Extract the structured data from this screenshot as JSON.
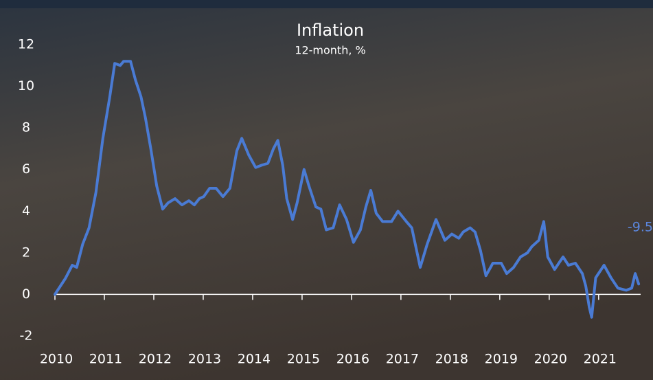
{
  "chart_data": {
    "type": "line",
    "title": "Inflation",
    "subtitle": "12-month, %",
    "annotation": "-9.5",
    "xlim": [
      2010,
      2021.85
    ],
    "ylim": [
      -2,
      12
    ],
    "xticks": [
      2010,
      2011,
      2012,
      2013,
      2014,
      2015,
      2016,
      2017,
      2018,
      2019,
      2020,
      2021
    ],
    "yticks": [
      -2,
      0,
      2,
      4,
      6,
      8,
      10,
      12
    ],
    "series": [
      {
        "name": "Inflation",
        "color": "#4a7bd4",
        "x": [
          2010.0,
          2010.21,
          2010.35,
          2010.44,
          2010.56,
          2010.69,
          2010.83,
          2010.97,
          2011.11,
          2011.21,
          2011.32,
          2011.39,
          2011.53,
          2011.63,
          2011.74,
          2011.83,
          2011.94,
          2012.06,
          2012.18,
          2012.29,
          2012.43,
          2012.57,
          2012.71,
          2012.82,
          2012.92,
          2013.01,
          2013.13,
          2013.26,
          2013.4,
          2013.54,
          2013.68,
          2013.78,
          2013.92,
          2014.06,
          2014.17,
          2014.31,
          2014.42,
          2014.51,
          2014.61,
          2014.69,
          2014.81,
          2014.9,
          2015.04,
          2015.14,
          2015.28,
          2015.38,
          2015.49,
          2015.63,
          2015.76,
          2015.9,
          2016.04,
          2016.18,
          2016.29,
          2016.39,
          2016.5,
          2016.63,
          2016.81,
          2016.94,
          2017.11,
          2017.22,
          2017.39,
          2017.53,
          2017.71,
          2017.89,
          2018.03,
          2018.17,
          2018.26,
          2018.4,
          2018.5,
          2018.61,
          2018.72,
          2018.86,
          2019.03,
          2019.14,
          2019.28,
          2019.42,
          2019.56,
          2019.65,
          2019.79,
          2019.89,
          2019.97,
          2020.11,
          2020.28,
          2020.39,
          2020.53,
          2020.67,
          2020.74,
          2020.81,
          2020.86,
          2020.94,
          2021.11,
          2021.25,
          2021.39,
          2021.56,
          2021.67,
          2021.74,
          2021.81
        ],
        "values": [
          0,
          0.76,
          1.4,
          1.3,
          2.4,
          3.2,
          4.9,
          7.5,
          9.5,
          11.1,
          11.0,
          11.2,
          11.2,
          10.3,
          9.5,
          8.5,
          7.0,
          5.2,
          4.1,
          4.4,
          4.6,
          4.3,
          4.5,
          4.3,
          4.6,
          4.7,
          5.1,
          5.1,
          4.7,
          5.1,
          6.9,
          7.5,
          6.7,
          6.1,
          6.2,
          6.3,
          7.0,
          7.4,
          6.2,
          4.6,
          3.6,
          4.4,
          6.0,
          5.2,
          4.2,
          4.1,
          3.1,
          3.2,
          4.3,
          3.6,
          2.5,
          3.1,
          4.2,
          5.0,
          3.9,
          3.5,
          3.5,
          4.0,
          3.5,
          3.2,
          1.3,
          2.4,
          3.6,
          2.6,
          2.9,
          2.7,
          3.0,
          3.2,
          3.0,
          2.1,
          0.9,
          1.5,
          1.5,
          1.0,
          1.3,
          1.8,
          2.0,
          2.3,
          2.6,
          3.5,
          1.8,
          1.2,
          1.8,
          1.4,
          1.5,
          1.0,
          0.4,
          -0.6,
          -1.1,
          0.8,
          1.4,
          0.8,
          0.3,
          0.2,
          0.3,
          1.0,
          0.5
        ]
      }
    ]
  }
}
